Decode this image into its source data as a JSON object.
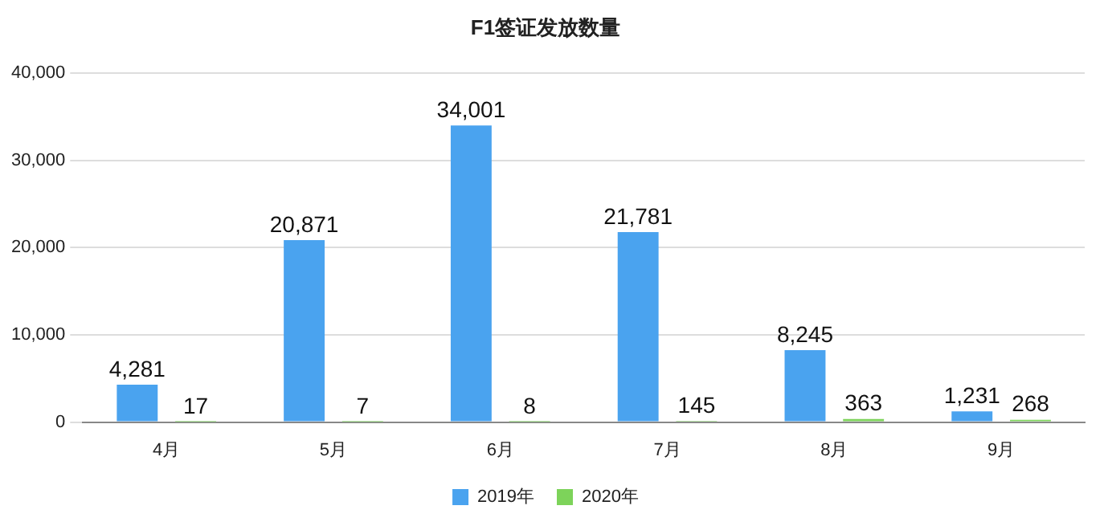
{
  "chart_data": {
    "type": "bar",
    "title": "F1签证发放数量",
    "categories": [
      "4月",
      "5月",
      "6月",
      "7月",
      "8月",
      "9月"
    ],
    "series": [
      {
        "name": "2019年",
        "color": "#4aa3ef",
        "values": [
          4281,
          20871,
          34001,
          21781,
          8245,
          1231
        ],
        "value_labels": [
          "4,281",
          "20,871",
          "34,001",
          "21,781",
          "8,245",
          "1,231"
        ]
      },
      {
        "name": "2020年",
        "color": "#7dd35a",
        "values": [
          17,
          7,
          8,
          145,
          363,
          268
        ],
        "value_labels": [
          "17",
          "7",
          "8",
          "145",
          "363",
          "268"
        ]
      }
    ],
    "ylim": [
      0,
      40000
    ],
    "yticks": [
      0,
      {
        "value": 10000,
        "label": "10,000"
      },
      {
        "value": 20000,
        "label": "20,000"
      },
      {
        "value": 30000,
        "label": "30,000"
      },
      {
        "value": 40000,
        "label": "40,000"
      }
    ],
    "grid": "y",
    "legend": "bottom"
  }
}
